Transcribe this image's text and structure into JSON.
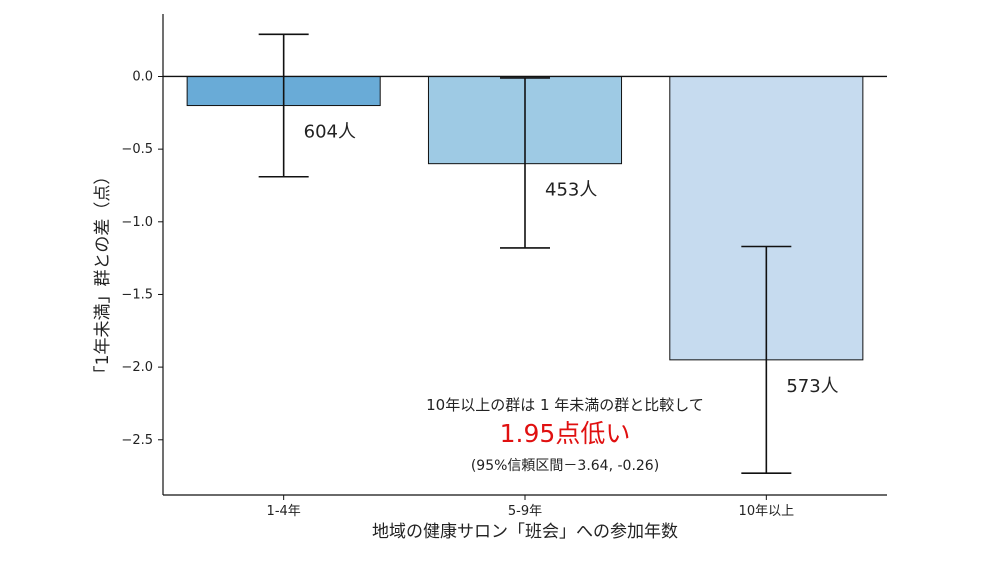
{
  "chart_data": {
    "type": "bar",
    "categories": [
      "1-4年",
      "5-9年",
      "10年以上"
    ],
    "values": [
      -0.2,
      -0.6,
      -1.95
    ],
    "error_low": [
      -0.69,
      -1.18,
      -2.73
    ],
    "error_high": [
      0.29,
      -0.01,
      -1.17
    ],
    "count_labels": [
      "604人",
      "453人",
      "573人"
    ],
    "colors": [
      "#69abd7",
      "#9ecae4",
      "#c6dbef"
    ],
    "xlabel": "地域の健康サロン「班会」への参加年数",
    "ylabel": "「1年未満」群との差（点）",
    "ylim": [
      -2.88,
      0.43
    ],
    "yticks": [
      0.0,
      -0.5,
      -1.0,
      -1.5,
      -2.0,
      -2.5
    ],
    "ytick_labels": [
      "0.0",
      "−0.5",
      "−1.0",
      "−1.5",
      "−2.0",
      "−2.5"
    ],
    "grid": false,
    "annotation": {
      "line1": "10年以上の群は 1 年未満の群と比較して",
      "line2": "1.95点低い",
      "line3": "(95%信頼区間－3.64, -0.26)",
      "highlight_color": "#e01010"
    }
  }
}
